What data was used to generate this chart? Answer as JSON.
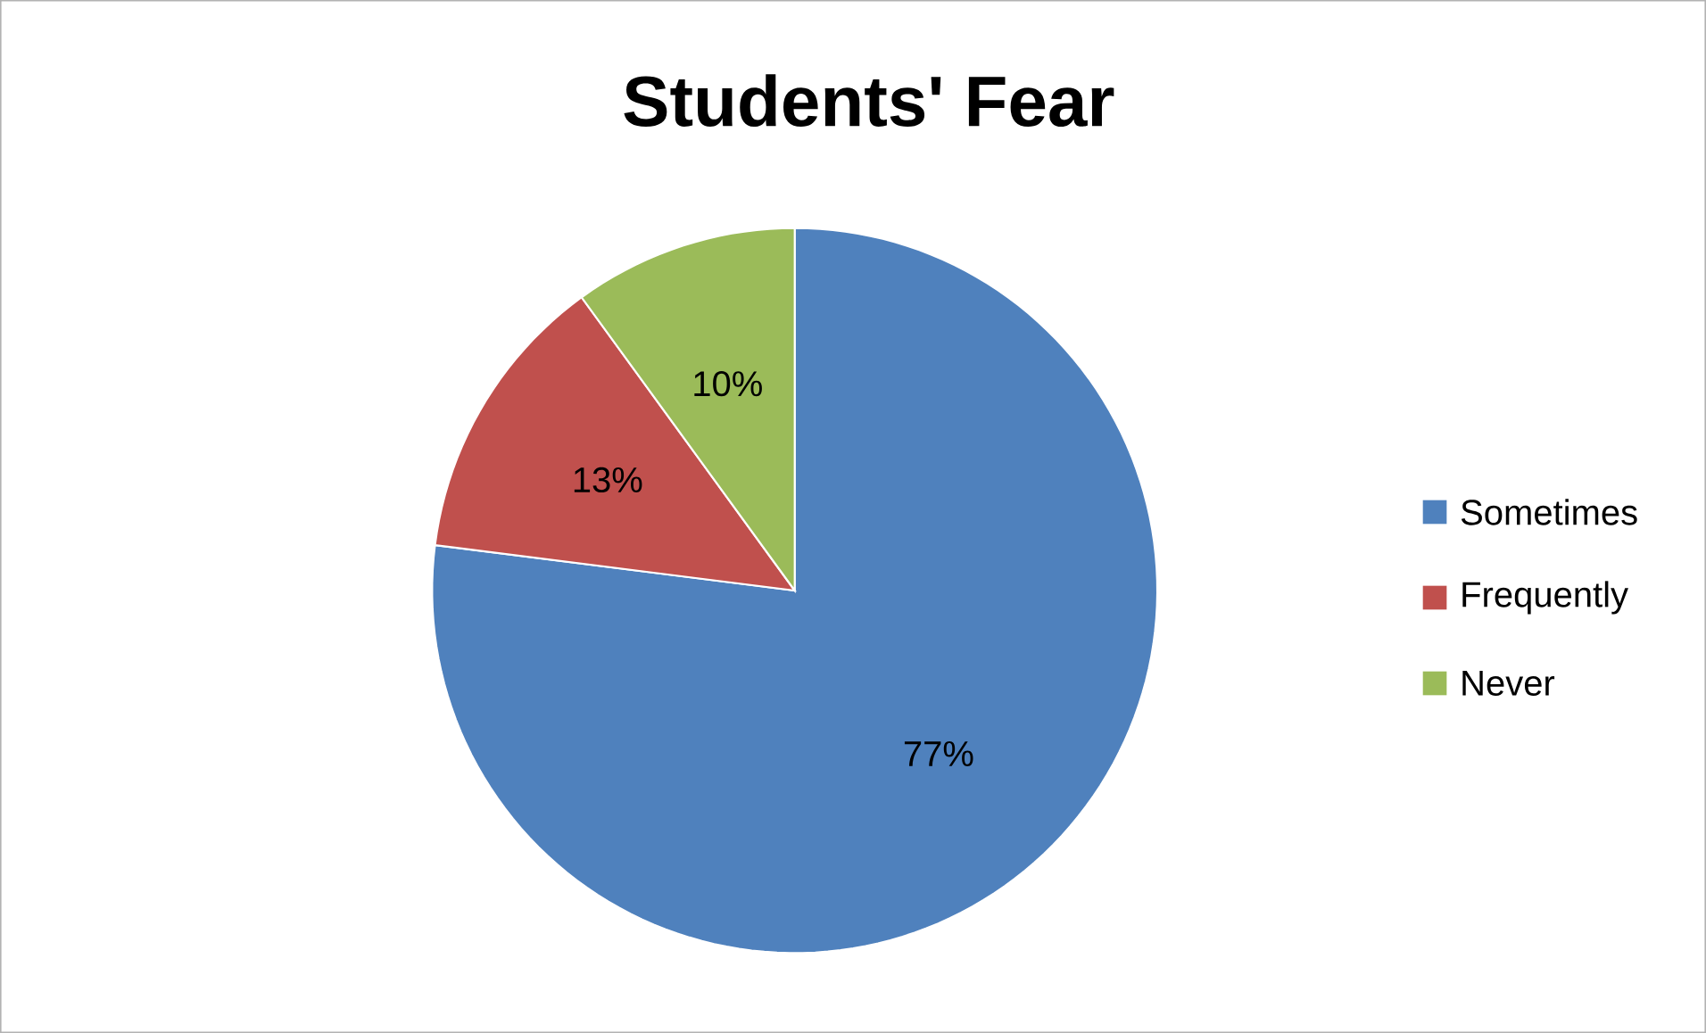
{
  "chart_data": {
    "type": "pie",
    "title": "Students' Fear",
    "categories": [
      "Sometimes",
      "Frequently",
      "Never"
    ],
    "values": [
      77,
      13,
      10
    ],
    "colors": [
      "#4f81bd",
      "#c0504d",
      "#9bbb59"
    ],
    "value_labels": [
      "77%",
      "13%",
      "10%"
    ],
    "legend": "right"
  }
}
